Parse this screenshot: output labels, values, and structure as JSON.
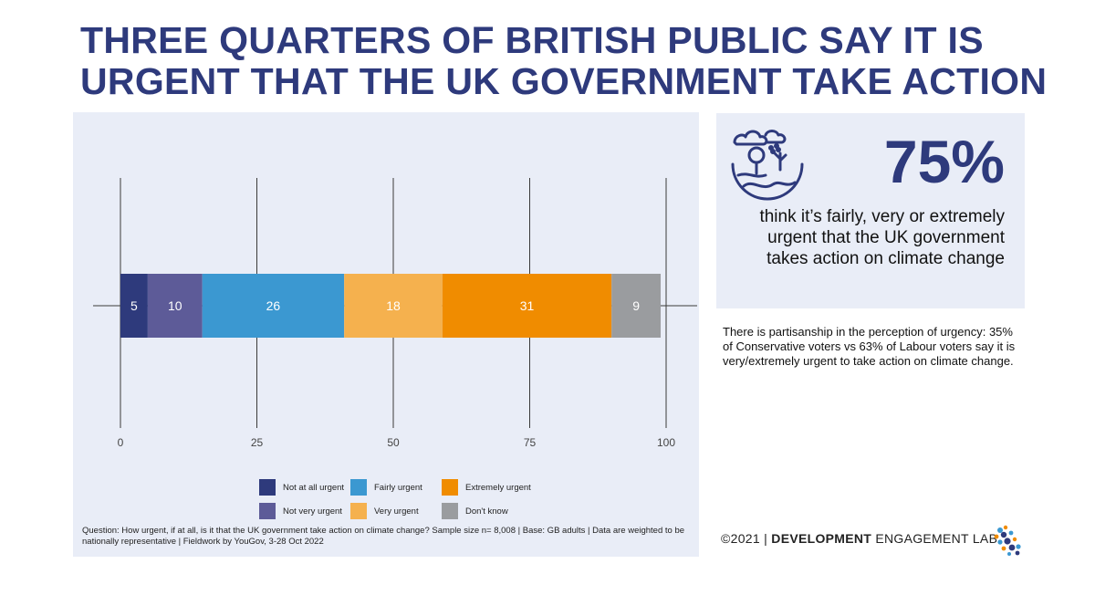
{
  "title": "THREE QUARTERS OF BRITISH PUBLIC SAY IT IS URGENT THAT THE UK GOVERNMENT TAKE ACTION",
  "chart_data": {
    "type": "bar",
    "orientation": "horizontal-stacked",
    "categories": [
      ""
    ],
    "series": [
      {
        "name": "Not at all urgent",
        "values": [
          5
        ],
        "color": "#2e3a7c"
      },
      {
        "name": "Not very urgent",
        "values": [
          10
        ],
        "color": "#5d5b98"
      },
      {
        "name": "Fairly urgent",
        "values": [
          26
        ],
        "color": "#3b98d1"
      },
      {
        "name": "Very urgent",
        "values": [
          18
        ],
        "color": "#f5b14e"
      },
      {
        "name": "Extremely urgent",
        "values": [
          31
        ],
        "color": "#f08c00"
      },
      {
        "name": "Don't know",
        "values": [
          9
        ],
        "color": "#9a9c9f"
      }
    ],
    "xticks": [
      0,
      25,
      50,
      75,
      100
    ],
    "xlim": [
      0,
      100
    ],
    "grid": true,
    "legend_position": "bottom",
    "xlabel": "",
    "ylabel": ""
  },
  "legend": {
    "items": [
      {
        "label": "Not at all urgent",
        "color": "#2e3a7c"
      },
      {
        "label": "Fairly urgent",
        "color": "#3b98d1"
      },
      {
        "label": "Extremely urgent",
        "color": "#f08c00"
      },
      {
        "label": "Not very urgent",
        "color": "#5d5b98"
      },
      {
        "label": "Very urgent",
        "color": "#f5b14e"
      },
      {
        "label": "Don't know",
        "color": "#9a9c9f"
      }
    ]
  },
  "footnote": "Question: How urgent, if at all, is it that the UK government take action on climate change? Sample size n= 8,008 | Base: GB adults | Data are weighted to be nationally representative | Fieldwork by YouGov, 3-28 Oct 2022",
  "stat": {
    "number": "75%",
    "text": "think it’s fairly, very or extremely urgent that the UK government takes action on climate change",
    "icon": "climate-globe-icon"
  },
  "side_note": "There is partisanship in the perception of urgency: 35% of Conservative voters vs 63% of Labour voters say it is very/extremely urgent to take action on climate change.",
  "copyright": {
    "prefix": "©2021 | ",
    "brand": "DEVELOPMENT",
    "suffix": " ENGAGEMENT LAB",
    "logo_icon": "del-logo-icon"
  },
  "colors": {
    "title": "#2e3a7c",
    "panel_bg": "#e9edf7"
  }
}
